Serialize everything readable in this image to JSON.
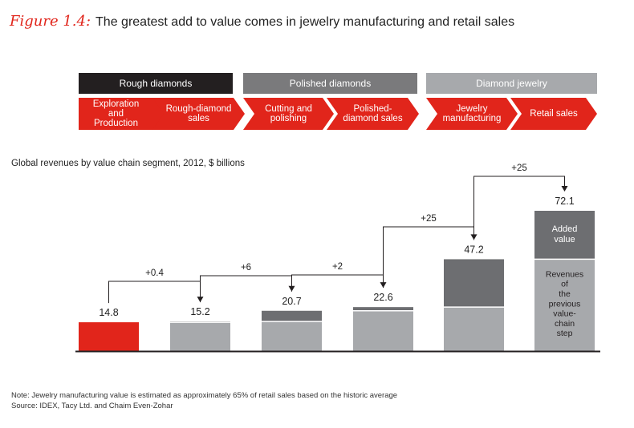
{
  "figure": {
    "label": "Figure 1.4:",
    "title": "The greatest add to value comes in jewelry manufacturing and retail sales"
  },
  "headers": [
    {
      "label": "Rough diamonds",
      "color": "#231f20"
    },
    {
      "label": "Polished diamonds",
      "color": "#7a7a7c"
    },
    {
      "label": "Diamond jewelry",
      "color": "#a7a9ac"
    }
  ],
  "steps": [
    {
      "lines": [
        "Exploration",
        "and",
        "Production"
      ]
    },
    {
      "lines": [
        "Rough-diamond",
        "sales"
      ]
    },
    {
      "lines": [
        "Cutting and",
        "polishing"
      ]
    },
    {
      "lines": [
        "Polished-",
        "diamond sales"
      ]
    },
    {
      "lines": [
        "Jewelry",
        "manufacturing"
      ]
    },
    {
      "lines": [
        "Retail sales"
      ]
    }
  ],
  "subtitle": "Global revenues by value chain segment, 2012, $ billions",
  "colors": {
    "accent": "#e1251b",
    "base": "#a7a9ac",
    "added": "#6d6e71",
    "dark": "#231f20"
  },
  "chart_data": {
    "type": "bar",
    "stacked": true,
    "unit": "$ billions",
    "categories": [
      "Exploration and Production",
      "Rough-diamond sales",
      "Cutting and polishing",
      "Polished-diamond sales",
      "Jewelry manufacturing",
      "Retail sales"
    ],
    "totals": [
      14.8,
      15.2,
      20.7,
      22.6,
      47.2,
      72.1
    ],
    "previous_step": [
      0,
      14.8,
      15.2,
      20.7,
      22.6,
      47.2
    ],
    "added_value": [
      14.8,
      0.4,
      5.5,
      1.9,
      24.6,
      24.9
    ],
    "value_labels": [
      "14.8",
      "15.2",
      "20.7",
      "22.6",
      "47.2",
      "72.1"
    ],
    "increments": [
      "+0.4",
      "+6",
      "+2",
      "+25",
      "+25"
    ],
    "legend_inside_last_bar": {
      "top": [
        "Added",
        "value"
      ],
      "bottom": [
        "Revenues",
        "of",
        "the",
        "previous",
        "value-",
        "chain",
        "step"
      ]
    },
    "ylim": [
      0,
      72.1
    ],
    "grid": false
  },
  "note": "Note:  Jewelry manufacturing value is estimated as approximately 65% of retail sales based on the historic average",
  "source": "Source:  IDEX, Tacy Ltd. and Chaim Even-Zohar"
}
